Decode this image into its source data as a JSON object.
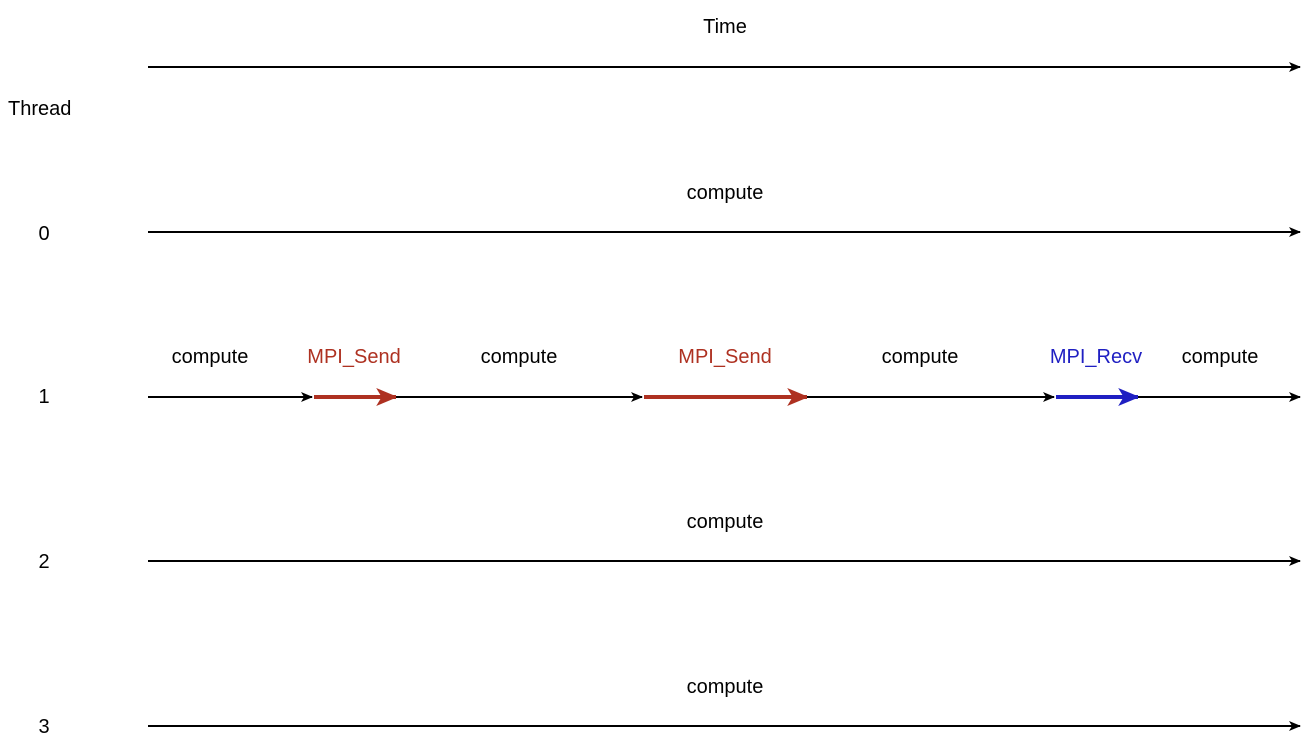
{
  "header": {
    "time_label": "Time",
    "thread_label": "Thread"
  },
  "colors": {
    "line": "#000000",
    "send": "#ae3121",
    "recv": "#1f1fc2",
    "text": "#000000"
  },
  "threads": [
    {
      "id": "0",
      "segments": [
        {
          "label": "compute",
          "kind": "compute"
        }
      ]
    },
    {
      "id": "1",
      "segments": [
        {
          "label": "compute",
          "kind": "compute"
        },
        {
          "label": "MPI_Send",
          "kind": "send"
        },
        {
          "label": "compute",
          "kind": "compute"
        },
        {
          "label": "MPI_Send",
          "kind": "send"
        },
        {
          "label": "compute",
          "kind": "compute"
        },
        {
          "label": "MPI_Recv",
          "kind": "recv"
        },
        {
          "label": "compute",
          "kind": "compute"
        }
      ]
    },
    {
      "id": "2",
      "segments": [
        {
          "label": "compute",
          "kind": "compute"
        }
      ]
    },
    {
      "id": "3",
      "segments": [
        {
          "label": "compute",
          "kind": "compute"
        }
      ]
    }
  ]
}
